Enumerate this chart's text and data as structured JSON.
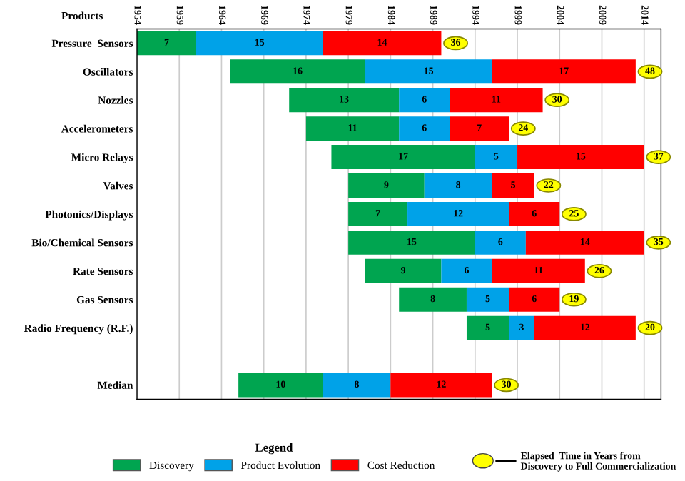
{
  "chart_data": {
    "type": "bar",
    "orientation": "horizontal",
    "ylabel": "Products",
    "legend_title": "Legend",
    "legend": "bottom",
    "categories": [
      "Pressure  Sensors",
      "Oscillators",
      "Nozzles",
      "Accelerometers",
      "Micro Relays",
      "Valves",
      "Photonics/Displays",
      "Bio/Chemical Sensors",
      "Rate Sensors",
      "Gas Sensors",
      "Radio Frequency (R.F.)",
      null,
      "Median"
    ],
    "series": [
      {
        "name": "Discovery",
        "color": "#00a550",
        "base": [
          1954,
          1965,
          1972,
          1974,
          1977,
          1979,
          1979,
          1979,
          1981,
          1985,
          1993,
          null,
          1966
        ],
        "values": [
          7,
          16,
          13,
          11,
          17,
          9,
          7,
          15,
          9,
          8,
          5,
          null,
          10
        ]
      },
      {
        "name": "Product Evolution",
        "color": "#00a2e8",
        "base": [
          1961,
          1981,
          1985,
          1985,
          1994,
          1988,
          1986,
          1994,
          1990,
          1993,
          1998,
          null,
          1976
        ],
        "values": [
          15,
          15,
          6,
          6,
          5,
          8,
          12,
          6,
          6,
          5,
          3,
          null,
          8
        ]
      },
      {
        "name": "Cost Reduction",
        "color": "#ff0000",
        "base": [
          1976,
          1996,
          1991,
          1991,
          1999,
          1996,
          1998,
          2000,
          1996,
          1998,
          2001,
          null,
          1984
        ],
        "values": [
          14,
          17,
          11,
          7,
          15,
          5,
          6,
          14,
          11,
          6,
          12,
          null,
          12
        ]
      }
    ],
    "data_labels": true,
    "xlim": [
      1954,
      2016
    ],
    "xticks": [
      1954,
      1959,
      1964,
      1969,
      1974,
      1979,
      1984,
      1989,
      1994,
      1999,
      2004,
      2009,
      2014
    ],
    "grid": "x",
    "annotations": [
      {
        "text": "36",
        "x": 1990,
        "y": "Pressure  Sensors"
      },
      {
        "text": "48",
        "x": 2013,
        "y": "Oscillators"
      },
      {
        "text": "30",
        "x": 2002,
        "y": "Nozzles"
      },
      {
        "text": "24",
        "x": 1998,
        "y": "Accelerometers"
      },
      {
        "text": "37",
        "x": 2014,
        "y": "Micro Relays"
      },
      {
        "text": "22",
        "x": 2001,
        "y": "Valves"
      },
      {
        "text": "25",
        "x": 2004,
        "y": "Photonics/Displays"
      },
      {
        "text": "35",
        "x": 2014,
        "y": "Bio/Chemical Sensors"
      },
      {
        "text": "26",
        "x": 2007,
        "y": "Rate Sensors"
      },
      {
        "text": "19",
        "x": 2004,
        "y": "Gas Sensors"
      },
      {
        "text": "20",
        "x": 2013,
        "y": "Radio Frequency (R.F.)"
      },
      {
        "text": "30",
        "x": 1996,
        "y": "Median"
      },
      "Elapsed  Time in Years from Discovery to Full Commercialization"
    ]
  }
}
